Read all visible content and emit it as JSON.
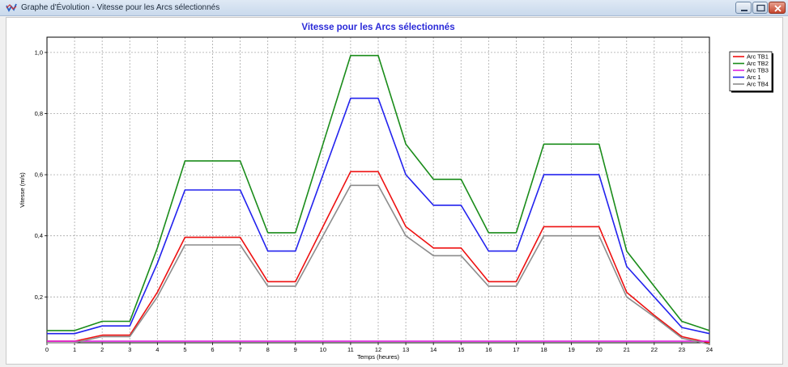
{
  "window": {
    "title": "Graphe d'Évolution - Vitesse pour les Arcs sélectionnés",
    "controls": [
      "minimize",
      "maximize",
      "close"
    ]
  },
  "chart_data": {
    "type": "line",
    "title": "Vitesse pour les Arcs sélectionnés",
    "xlabel": "Temps (heures)",
    "ylabel": "Vitesse (m/s)",
    "xlim": [
      0,
      24
    ],
    "ylim": [
      0.05,
      1.05
    ],
    "x": [
      0,
      1,
      2,
      3,
      4,
      5,
      6,
      7,
      8,
      9,
      10,
      11,
      12,
      13,
      14,
      15,
      16,
      17,
      18,
      19,
      20,
      21,
      22,
      23,
      24
    ],
    "x_ticks": [
      "0",
      "1",
      "2",
      "3",
      "4",
      "5",
      "6",
      "7",
      "8",
      "9",
      "10",
      "11",
      "12",
      "13",
      "14",
      "15",
      "16",
      "17",
      "18",
      "19",
      "20",
      "21",
      "22",
      "23",
      "24"
    ],
    "y_ticks": [
      {
        "value": 0.2,
        "label": "0,2"
      },
      {
        "value": 0.4,
        "label": "0,4"
      },
      {
        "value": 0.6,
        "label": "0,6"
      },
      {
        "value": 0.8,
        "label": "0,8"
      },
      {
        "value": 1.0,
        "label": "1,0"
      }
    ],
    "grid": true,
    "legend_position": "top-right",
    "series": [
      {
        "name": "Arc TB1",
        "color": "#ee1111",
        "values": [
          0.055,
          0.055,
          0.075,
          0.075,
          0.215,
          0.395,
          0.395,
          0.395,
          0.25,
          0.25,
          0.43,
          0.61,
          0.61,
          0.43,
          0.36,
          0.36,
          0.25,
          0.25,
          0.43,
          0.43,
          0.43,
          0.215,
          0.14,
          0.07,
          0.05
        ]
      },
      {
        "name": "Arc TB2",
        "color": "#1a8c1a",
        "values": [
          0.09,
          0.09,
          0.12,
          0.12,
          0.36,
          0.645,
          0.645,
          0.645,
          0.41,
          0.41,
          0.7,
          0.99,
          0.99,
          0.7,
          0.585,
          0.585,
          0.41,
          0.41,
          0.7,
          0.7,
          0.7,
          0.35,
          0.235,
          0.12,
          0.09
        ]
      },
      {
        "name": "Arc TB3",
        "color": "#dd22dd",
        "values": [
          0.055,
          0.055,
          0.055,
          0.055,
          0.055,
          0.055,
          0.055,
          0.055,
          0.055,
          0.055,
          0.055,
          0.055,
          0.055,
          0.055,
          0.055,
          0.055,
          0.055,
          0.055,
          0.055,
          0.055,
          0.055,
          0.055,
          0.055,
          0.055,
          0.055
        ]
      },
      {
        "name": "Arc 1",
        "color": "#2222ee",
        "values": [
          0.08,
          0.08,
          0.105,
          0.105,
          0.31,
          0.55,
          0.55,
          0.55,
          0.35,
          0.35,
          0.6,
          0.85,
          0.85,
          0.6,
          0.5,
          0.5,
          0.35,
          0.35,
          0.6,
          0.6,
          0.6,
          0.3,
          0.2,
          0.1,
          0.08
        ]
      },
      {
        "name": "Arc TB4",
        "color": "#8c8c8c",
        "values": [
          0.05,
          0.05,
          0.07,
          0.07,
          0.2,
          0.37,
          0.37,
          0.37,
          0.235,
          0.235,
          0.4,
          0.565,
          0.565,
          0.4,
          0.335,
          0.335,
          0.235,
          0.235,
          0.4,
          0.4,
          0.4,
          0.2,
          0.135,
          0.065,
          0.045
        ]
      }
    ]
  }
}
